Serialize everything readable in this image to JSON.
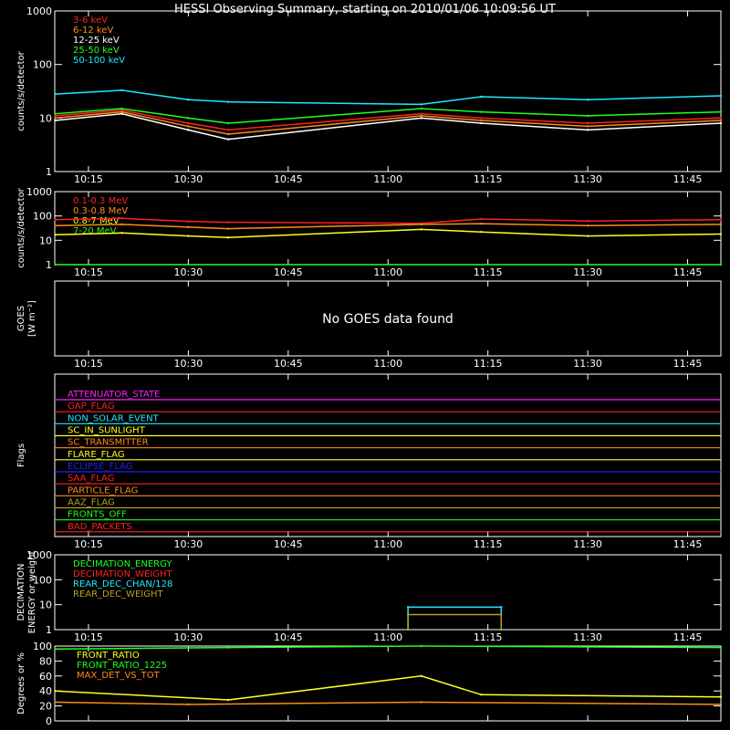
{
  "title": "HESSI Observing Summary, starting on 2010/01/06 10:09:56 UT",
  "time_ticks": [
    "10:15",
    "10:30",
    "10:45",
    "11:00",
    "11:15",
    "11:30",
    "11:45"
  ],
  "colors": {
    "red": "#ff2020",
    "orange": "#ff8c1a",
    "white": "#ffffff",
    "green": "#20ff20",
    "cyan": "#20e8ff",
    "yellow": "#ffff20",
    "magenta": "#ff20ff",
    "blue": "#2020ff",
    "olive": "#b8a020",
    "tan": "#d8b040"
  },
  "chart_data": [
    {
      "type": "line",
      "id": "count_rates_low",
      "ylabel": "counts/s/detector",
      "yscale": "log",
      "ylim": [
        1,
        1000
      ],
      "yticks": [
        "1",
        "10",
        "100",
        "1000"
      ],
      "xlim": [
        "10:09:56",
        "11:50:00"
      ],
      "legend": "top-left",
      "series": [
        {
          "name": "3-6 keV",
          "color": "red",
          "x": [
            "10:10",
            "10:20",
            "10:30",
            "10:36",
            "11:05",
            "11:14",
            "11:30",
            "11:50"
          ],
          "y": [
            11,
            14,
            8,
            6,
            12,
            10,
            8,
            10
          ]
        },
        {
          "name": "6-12 keV",
          "color": "orange",
          "x": [
            "10:10",
            "10:20",
            "10:30",
            "10:36",
            "11:05",
            "11:14",
            "11:30",
            "11:50"
          ],
          "y": [
            10,
            13,
            7,
            5,
            11,
            9,
            7,
            9
          ]
        },
        {
          "name": "12-25 keV",
          "color": "white",
          "x": [
            "10:10",
            "10:20",
            "10:30",
            "10:36",
            "11:05",
            "11:14",
            "11:30",
            "11:50"
          ],
          "y": [
            9,
            12,
            6,
            4,
            10,
            8,
            6,
            8
          ]
        },
        {
          "name": "25-50 keV",
          "color": "green",
          "x": [
            "10:10",
            "10:20",
            "10:30",
            "10:36",
            "11:05",
            "11:14",
            "11:30",
            "11:50"
          ],
          "y": [
            12,
            15,
            10,
            8,
            15,
            13,
            11,
            13
          ]
        },
        {
          "name": "50-100 keV",
          "color": "cyan",
          "x": [
            "10:10",
            "10:20",
            "10:30",
            "10:36",
            "11:05",
            "11:14",
            "11:30",
            "11:50"
          ],
          "y": [
            28,
            33,
            22,
            20,
            18,
            25,
            22,
            26
          ]
        }
      ]
    },
    {
      "type": "line",
      "id": "count_rates_high",
      "ylabel": "counts/s/detector",
      "yscale": "log",
      "ylim": [
        1,
        1000
      ],
      "yticks": [
        "1",
        "10",
        "100",
        "1000"
      ],
      "legend": "top-left",
      "series": [
        {
          "name": "0.1-0.3 MeV",
          "color": "red",
          "x": [
            "10:10",
            "10:20",
            "10:30",
            "10:36",
            "11:05",
            "11:14",
            "11:30",
            "11:50"
          ],
          "y": [
            70,
            80,
            60,
            55,
            50,
            75,
            62,
            70
          ]
        },
        {
          "name": "0.3-0.8 MeV",
          "color": "orange",
          "x": [
            "10:10",
            "10:20",
            "10:30",
            "10:36",
            "11:05",
            "11:14",
            "11:30",
            "11:50"
          ],
          "y": [
            40,
            45,
            35,
            30,
            45,
            48,
            40,
            45
          ]
        },
        {
          "name": "0.8-7 MeV",
          "color": "yellow",
          "x": [
            "10:10",
            "10:20",
            "10:30",
            "10:36",
            "11:05",
            "11:14",
            "11:30",
            "11:50"
          ],
          "y": [
            17,
            20,
            15,
            13,
            28,
            22,
            15,
            18
          ]
        },
        {
          "name": "7-20 MeV",
          "color": "green",
          "x": [
            "10:10",
            "11:50"
          ],
          "y": [
            1,
            1
          ]
        }
      ]
    },
    {
      "type": "line",
      "id": "goes",
      "ylabel": "GOES",
      "ylabel2": "[W m⁻²]",
      "message": "No GOES data found"
    },
    {
      "type": "line",
      "id": "flags",
      "ylabel": "Flags",
      "series": [
        {
          "name": "ATTENUATOR_STATE",
          "color": "magenta"
        },
        {
          "name": "GAP_FLAG",
          "color": "red"
        },
        {
          "name": "NON_SOLAR_EVENT",
          "color": "cyan"
        },
        {
          "name": "SC_IN_SUNLIGHT",
          "color": "yellow"
        },
        {
          "name": "SC_TRANSMITTER",
          "color": "orange"
        },
        {
          "name": "FLARE_FLAG",
          "color": "yellow"
        },
        {
          "name": "ECLIPSE_FLAG",
          "color": "blue"
        },
        {
          "name": "SAA_FLAG",
          "color": "red"
        },
        {
          "name": "PARTICLE_FLAG",
          "color": "orange"
        },
        {
          "name": "AAZ_FLAG",
          "color": "olive"
        },
        {
          "name": "FRONTS_OFF",
          "color": "green"
        },
        {
          "name": "BAD_PACKETS",
          "color": "red"
        }
      ]
    },
    {
      "type": "line",
      "id": "decimation",
      "ylabel": "DECIMATION",
      "ylabel2": "ENERGY or weight",
      "yscale": "log",
      "ylim": [
        1,
        1000
      ],
      "yticks": [
        "1",
        "10",
        "100",
        "1000"
      ],
      "legend": "top-left",
      "series": [
        {
          "name": "DECIMATION_ENERGY",
          "color": "green"
        },
        {
          "name": "DECIMATION_WEIGHT",
          "color": "red"
        },
        {
          "name": "REAR_DEC_CHAN/128",
          "color": "cyan",
          "x": [
            "11:03",
            "11:03",
            "11:17",
            "11:17"
          ],
          "y": [
            1,
            8,
            8,
            1
          ]
        },
        {
          "name": "REAR_DEC_WEIGHT",
          "color": "olive",
          "x": [
            "11:03",
            "11:03",
            "11:17",
            "11:17"
          ],
          "y": [
            1,
            4,
            4,
            1
          ]
        }
      ]
    },
    {
      "type": "line",
      "id": "ratios",
      "ylabel": "Degrees or %",
      "ylim": [
        0,
        100
      ],
      "yticks": [
        "0",
        "20",
        "40",
        "60",
        "80",
        "100"
      ],
      "legend": "top-left",
      "series": [
        {
          "name": "FRONT_RATIO",
          "color": "yellow",
          "x": [
            "10:10",
            "10:36",
            "11:05",
            "11:14",
            "11:50"
          ],
          "y": [
            40,
            28,
            60,
            35,
            32
          ]
        },
        {
          "name": "FRONT_RATIO_1225",
          "color": "green",
          "x": [
            "10:10",
            "10:36",
            "11:05",
            "11:50"
          ],
          "y": [
            96,
            98,
            100,
            98
          ]
        },
        {
          "name": "MAX_DET_VS_TOT",
          "color": "orange",
          "x": [
            "10:10",
            "10:30",
            "11:05",
            "11:50"
          ],
          "y": [
            25,
            22,
            25,
            22
          ]
        }
      ]
    }
  ]
}
